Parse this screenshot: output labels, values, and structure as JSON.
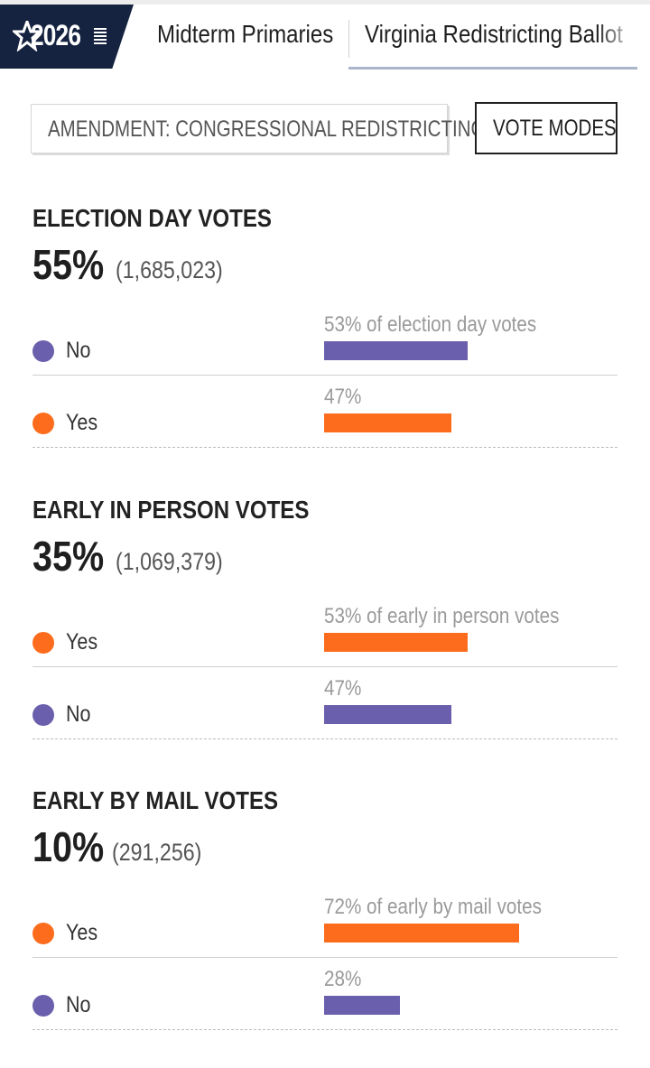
{
  "header": {
    "logo_text": "2026",
    "nav_tabs": [
      {
        "label": "Midterm Primaries"
      },
      {
        "label": "Virginia Redistricting Ballot"
      }
    ]
  },
  "buttons": {
    "amendment_label": "AMENDMENT: CONGRESSIONAL REDISTRICTING",
    "vote_modes_label": "VOTE MODES"
  },
  "colors": {
    "yes": "#fc6c1c",
    "no": "#6a5fac",
    "logo_bg": "#152340"
  },
  "sections": [
    {
      "title": "ELECTION DAY VOTES",
      "share": "55%",
      "count": "(1,685,023)",
      "rows": [
        {
          "choice": "No",
          "color": "#6a5fac",
          "pct_label": "53% of election day votes",
          "pct": 53
        },
        {
          "choice": "Yes",
          "color": "#fc6c1c",
          "pct_label": "47%",
          "pct": 47
        }
      ]
    },
    {
      "title": "EARLY IN PERSON VOTES",
      "share": "35%",
      "count": "(1,069,379)",
      "rows": [
        {
          "choice": "Yes",
          "color": "#fc6c1c",
          "pct_label": "53% of early in person votes",
          "pct": 53
        },
        {
          "choice": "No",
          "color": "#6a5fac",
          "pct_label": "47%",
          "pct": 47
        }
      ]
    },
    {
      "title": "EARLY BY MAIL VOTES",
      "share": "10%",
      "count": "(291,256)",
      "rows": [
        {
          "choice": "Yes",
          "color": "#fc6c1c",
          "pct_label": "72% of early by mail votes",
          "pct": 72
        },
        {
          "choice": "No",
          "color": "#6a5fac",
          "pct_label": "28%",
          "pct": 28
        }
      ]
    }
  ]
}
